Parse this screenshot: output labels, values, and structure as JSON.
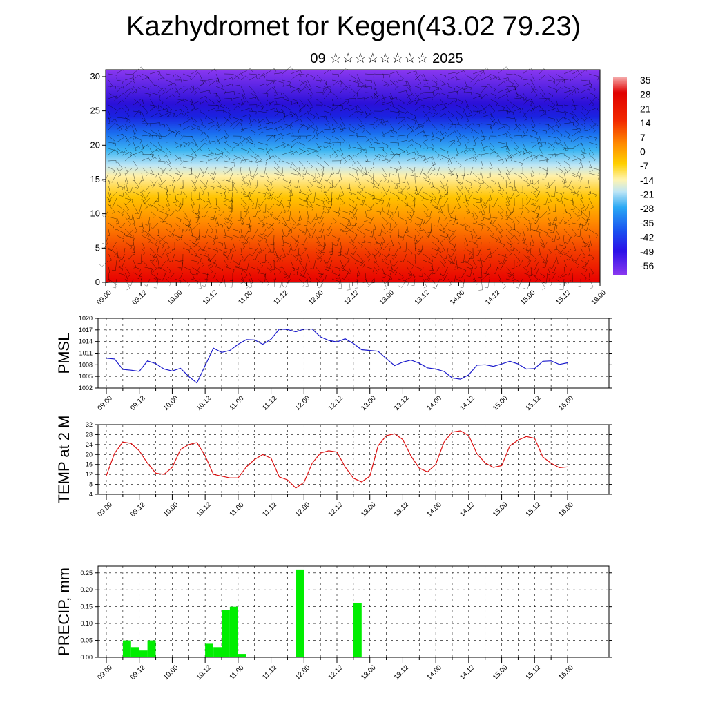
{
  "header": {
    "title": "Kazhydromet for Kegen(43.02 79.23)",
    "subtitle": "09 ☆☆☆☆☆☆☆☆ 2025"
  },
  "colors": {
    "pmsl_line": "#1a1acc",
    "temp_line": "#dd1111",
    "precip_bar": "#00ee00"
  },
  "chart_data": [
    {
      "type": "heatmap",
      "title": "",
      "xlabel": "",
      "ylabel": "",
      "x_tick_labels": [
        "09.00",
        "09.12",
        "10.00",
        "10.12",
        "11.00",
        "11.12",
        "12.00",
        "12.12",
        "13.00",
        "13.12",
        "14.00",
        "14.12",
        "15.00",
        "15.12",
        "16.00"
      ],
      "y_ticks": [
        0,
        5,
        10,
        15,
        20,
        25,
        30
      ],
      "ylim": [
        0,
        31
      ],
      "overlay": "wind barbs",
      "colorbar": {
        "labels": [
          "35",
          "28",
          "21",
          "14",
          "7",
          "0",
          "-7",
          "-14",
          "-21",
          "-28",
          "-35",
          "-42",
          "-49",
          "-56"
        ],
        "range": [
          -60,
          38
        ]
      }
    },
    {
      "type": "line",
      "ylabel": "PMSL",
      "ylim": [
        1002,
        1020
      ],
      "y_ticks": [
        1002,
        1005,
        1008,
        1011,
        1014,
        1017,
        1020
      ],
      "x_tick_labels": [
        "09.00",
        "09.12",
        "10.00",
        "10.12",
        "11.00",
        "11.12",
        "12.00",
        "12.12",
        "13.00",
        "13.12",
        "14.00",
        "14.12",
        "15.00",
        "15.12",
        "16.00"
      ],
      "x_hours": [
        0,
        3,
        6,
        9,
        12,
        15,
        18,
        21,
        24,
        27,
        30,
        33,
        36,
        39,
        42,
        45,
        48,
        51,
        54,
        57,
        60,
        63,
        66,
        69,
        72,
        75,
        78,
        81,
        84,
        87,
        90,
        93,
        96,
        99,
        102,
        105,
        108,
        111,
        114,
        117,
        120,
        123,
        126,
        129,
        132,
        135,
        138,
        141,
        144,
        147,
        150,
        153,
        156,
        159,
        162,
        165,
        168
      ],
      "values": [
        1009.7,
        1009.5,
        1006.8,
        1006.6,
        1006.3,
        1009.0,
        1008.3,
        1006.9,
        1006.4,
        1007.1,
        1005.0,
        1003.3,
        1007.8,
        1012.3,
        1011.2,
        1011.7,
        1013.3,
        1014.5,
        1014.4,
        1013.3,
        1014.6,
        1017.2,
        1017.1,
        1016.5,
        1017.2,
        1017.2,
        1015.2,
        1014.3,
        1013.9,
        1014.7,
        1013.5,
        1011.9,
        1011.7,
        1011.5,
        1009.6,
        1007.8,
        1008.7,
        1009.2,
        1008.4,
        1007.2,
        1006.9,
        1006.3,
        1004.6,
        1004.3,
        1005.4,
        1007.9,
        1008.0,
        1007.6,
        1008.2,
        1008.9,
        1008.2,
        1006.9,
        1007.0,
        1008.9,
        1009.0,
        1008.1,
        1008.5
      ]
    },
    {
      "type": "line",
      "ylabel": "TEMP at 2 M",
      "ylim": [
        4,
        32
      ],
      "y_ticks": [
        4,
        8,
        12,
        16,
        20,
        24,
        28,
        32
      ],
      "x_tick_labels": [
        "09.00",
        "09.12",
        "10.00",
        "10.12",
        "11.00",
        "11.12",
        "12.00",
        "12.12",
        "13.00",
        "13.12",
        "14.00",
        "14.12",
        "15.00",
        "15.12",
        "16.00"
      ],
      "x_hours": [
        0,
        3,
        6,
        9,
        12,
        15,
        18,
        21,
        24,
        27,
        30,
        33,
        36,
        39,
        42,
        45,
        48,
        51,
        54,
        57,
        60,
        63,
        66,
        69,
        72,
        75,
        78,
        81,
        84,
        87,
        90,
        93,
        96,
        99,
        102,
        105,
        108,
        111,
        114,
        117,
        120,
        123,
        126,
        129,
        132,
        135,
        138,
        141,
        144,
        147,
        150,
        153,
        156,
        159,
        162,
        165,
        168
      ],
      "values": [
        11.5,
        20.5,
        25.0,
        24.5,
        21.5,
        16.5,
        12.5,
        12.0,
        14.8,
        22.0,
        24.0,
        24.8,
        19.5,
        12.0,
        11.3,
        10.6,
        10.6,
        15.0,
        18.0,
        20.0,
        18.5,
        11.0,
        9.8,
        6.5,
        8.8,
        16.5,
        20.6,
        21.5,
        21.0,
        15.0,
        10.5,
        9.0,
        11.3,
        23.5,
        27.6,
        28.3,
        26.0,
        19.3,
        14.5,
        13.0,
        16.0,
        25.0,
        29.0,
        29.5,
        27.6,
        20.3,
        16.6,
        14.8,
        15.5,
        23.5,
        25.8,
        27.2,
        26.5,
        19.0,
        16.5,
        14.7,
        15.0
      ]
    },
    {
      "type": "bar",
      "ylabel": "PRECIP, mm",
      "ylim": [
        0,
        0.27
      ],
      "y_ticks": [
        "0.00",
        "0.05",
        "0.10",
        "0.15",
        "0.20",
        "0.25"
      ],
      "x_tick_labels": [
        "09.00",
        "09.12",
        "10.00",
        "10.12",
        "11.00",
        "11.12",
        "12.00",
        "12.12",
        "13.00",
        "13.12",
        "14.00",
        "14.12",
        "15.00",
        "15.12",
        "16.00"
      ],
      "x_hours": [
        3,
        6,
        9,
        12,
        15,
        18,
        21,
        24,
        27,
        30,
        33,
        36,
        39,
        42,
        45,
        48,
        51,
        54,
        57,
        60,
        63,
        66,
        69,
        72,
        75,
        78,
        81,
        84,
        87,
        90,
        93,
        96,
        99,
        102,
        105,
        108,
        111,
        114,
        117,
        120,
        123,
        126,
        129,
        132,
        135,
        138,
        141,
        144,
        147,
        150,
        153,
        156,
        159,
        162,
        165,
        168
      ],
      "values": [
        0,
        0,
        0.05,
        0.03,
        0.02,
        0.05,
        0,
        0,
        0,
        0,
        0,
        0,
        0.04,
        0.03,
        0.14,
        0.15,
        0.01,
        0,
        0,
        0,
        0,
        0,
        0,
        0.26,
        0,
        0,
        0,
        0,
        0,
        0,
        0.16,
        0,
        0,
        0,
        0,
        0,
        0,
        0,
        0,
        0,
        0,
        0,
        0,
        0,
        0,
        0,
        0,
        0,
        0,
        0,
        0,
        0,
        0,
        0,
        0,
        0
      ]
    }
  ]
}
